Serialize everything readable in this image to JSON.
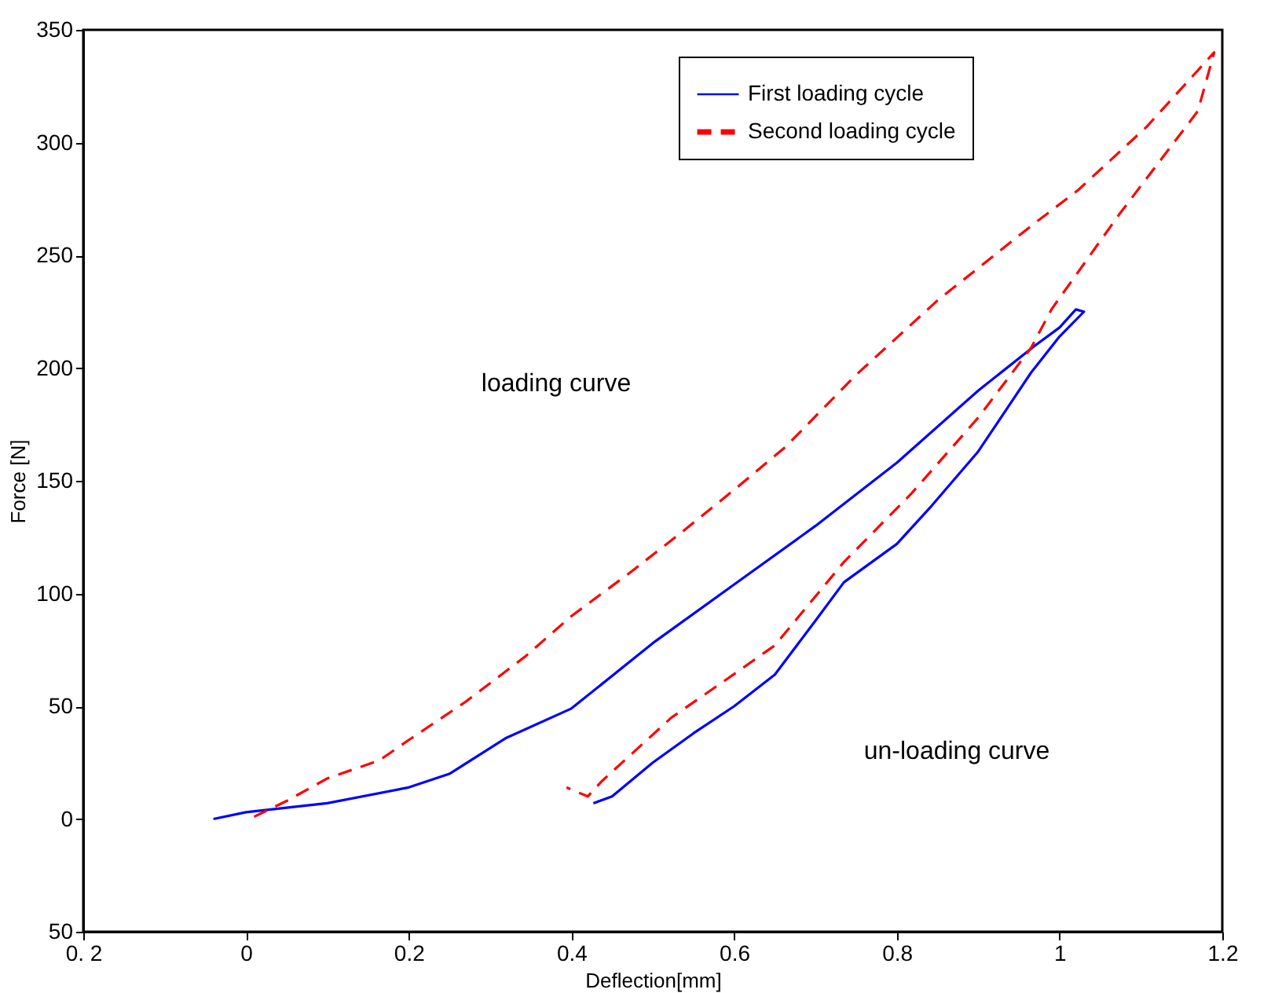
{
  "chart_data": {
    "type": "line",
    "xlabel": "Deflection[mm]",
    "ylabel": "Force [N]",
    "xlim": [
      -0.2,
      1.2
    ],
    "ylim": [
      -50,
      350
    ],
    "xticks": [
      {
        "value": -0.2,
        "label": "0. 2"
      },
      0,
      0.2,
      0.4,
      0.6,
      0.8,
      1,
      1.2
    ],
    "yticks": [
      {
        "value": -50,
        "label": "50"
      },
      0,
      50,
      100,
      150,
      200,
      250,
      300,
      350
    ],
    "legend": "top right",
    "annotations": [
      "loading curve",
      "un-loading curve"
    ],
    "series": [
      {
        "name": "First loading cycle",
        "color": "#0000ff",
        "line_style": "solid",
        "x": [
          -0.04,
          0,
          0.1,
          0.2,
          0.25,
          0.32,
          0.4,
          0.5,
          0.6,
          0.7,
          0.8,
          0.9,
          0.97,
          1.0,
          1.02,
          1.03,
          1.0,
          0.965,
          0.9,
          0.843,
          0.8,
          0.735,
          0.7,
          0.65,
          0.6,
          0.55,
          0.5,
          0.45,
          0.427
        ],
        "values": [
          0,
          3,
          7,
          14,
          20,
          36,
          49,
          78,
          104,
          130,
          158,
          190,
          210,
          218,
          226,
          225,
          214,
          198,
          163,
          139,
          122,
          105,
          88,
          64,
          50,
          38,
          25,
          10,
          7
        ]
      },
      {
        "name": "Second loading cycle",
        "color": "#ff0000",
        "line_style": "dashed",
        "x": [
          0.01,
          0.05,
          0.1,
          0.164,
          0.2,
          0.27,
          0.343,
          0.4,
          0.471,
          0.535,
          0.6,
          0.663,
          0.75,
          0.85,
          0.965,
          1.023,
          1.107,
          1.19,
          1.17,
          1.073,
          0.99,
          0.965,
          0.9,
          0.817,
          0.735,
          0.65,
          0.587,
          0.523,
          0.438,
          0.42,
          0.394
        ],
        "values": [
          1,
          8,
          18,
          26,
          35,
          52,
          72,
          90,
          109,
          127,
          146,
          165,
          197,
          230,
          263,
          279,
          307,
          340,
          314,
          268,
          226,
          209,
          178,
          144,
          114,
          77,
          61,
          45,
          17,
          10,
          14
        ]
      }
    ]
  }
}
